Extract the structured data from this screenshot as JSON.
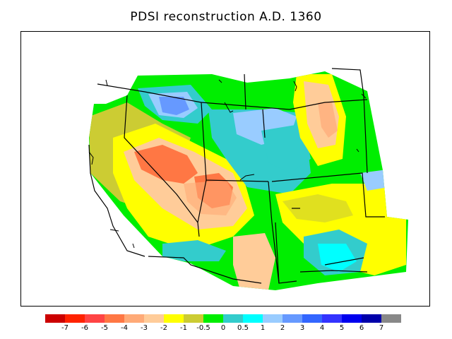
{
  "title": "PDSI reconstruction A.D. 1360",
  "legend": {
    "colors": [
      "#cc0000",
      "#ff2200",
      "#ff4444",
      "#ff7744",
      "#ffaa77",
      "#ffcc99",
      "#ffff00",
      "#cccc33",
      "#00ee00",
      "#33cccc",
      "#00ffff",
      "#99ccff",
      "#6699ff",
      "#3366ff",
      "#3333ff",
      "#0000ee",
      "#0000aa",
      "#888888"
    ],
    "ticks": [
      "-7",
      "-6",
      "-5",
      "-4",
      "-3",
      "-2",
      "-1",
      "-0.5",
      "0",
      "0.5",
      "1",
      "2",
      "3",
      "4",
      "5",
      "6",
      "7"
    ]
  },
  "map_colors": {
    "neutral_green": "#00ee00",
    "dry_yellow": "#ffff00",
    "olive": "#cccc33",
    "teal": "#33cccc",
    "cyan": "#00ffff",
    "light_blue": "#99ccff",
    "blue": "#6699ff",
    "peach": "#ffcc99",
    "salmon": "#ffaa77",
    "orange_red": "#ff7744"
  }
}
